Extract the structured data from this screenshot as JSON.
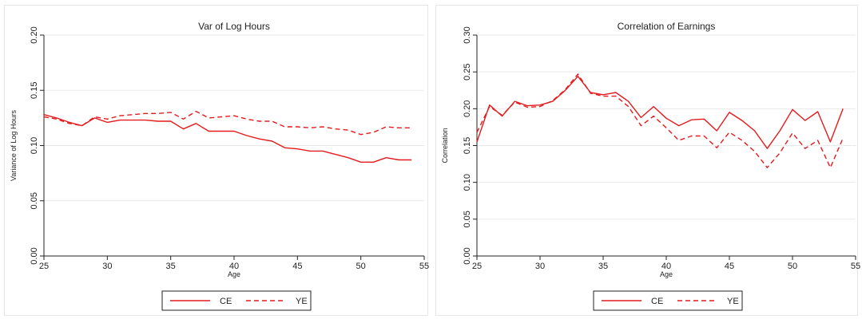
{
  "chart_data": [
    {
      "type": "line",
      "title": "Var of Log Hours",
      "xlabel": "Age",
      "ylabel": "Variance of Log Hours",
      "xlim": [
        25,
        55
      ],
      "ylim": [
        0.0,
        0.2
      ],
      "xticks": [
        "25",
        "30",
        "35",
        "40",
        "45",
        "50",
        "55"
      ],
      "yticks": [
        "0.00",
        "0.05",
        "0.10",
        "0.15",
        "0.20"
      ],
      "grid": true,
      "legend_position": "bottom",
      "series": [
        {
          "name": "CE",
          "color": "#e41a1c",
          "dash": "solid",
          "x": [
            25,
            26,
            27,
            28,
            29,
            30,
            31,
            32,
            33,
            34,
            35,
            36,
            37,
            38,
            39,
            40,
            41,
            42,
            43,
            44,
            45,
            46,
            47,
            48,
            49,
            50,
            51,
            52,
            53,
            54
          ],
          "y": [
            0.128,
            0.125,
            0.121,
            0.118,
            0.125,
            0.121,
            0.123,
            0.123,
            0.123,
            0.122,
            0.122,
            0.115,
            0.12,
            0.113,
            0.113,
            0.113,
            0.109,
            0.106,
            0.104,
            0.098,
            0.097,
            0.095,
            0.095,
            0.092,
            0.089,
            0.085,
            0.085,
            0.089,
            0.087,
            0.087
          ]
        },
        {
          "name": "YE",
          "color": "#e41a1c",
          "dash": "dashed",
          "x": [
            25,
            26,
            27,
            28,
            29,
            30,
            31,
            32,
            33,
            34,
            35,
            36,
            37,
            38,
            39,
            40,
            41,
            42,
            43,
            44,
            45,
            46,
            47,
            48,
            49,
            50,
            51,
            52,
            53,
            54
          ],
          "y": [
            0.126,
            0.124,
            0.12,
            0.118,
            0.126,
            0.124,
            0.127,
            0.128,
            0.129,
            0.129,
            0.13,
            0.124,
            0.131,
            0.125,
            0.126,
            0.127,
            0.124,
            0.122,
            0.122,
            0.117,
            0.117,
            0.116,
            0.117,
            0.115,
            0.114,
            0.11,
            0.112,
            0.117,
            0.116,
            0.116
          ]
        }
      ]
    },
    {
      "type": "line",
      "title": "Correlation of Earnings",
      "xlabel": "Age",
      "ylabel": "Correlation",
      "xlim": [
        25,
        55
      ],
      "ylim": [
        0.0,
        0.3
      ],
      "xticks": [
        "25",
        "30",
        "35",
        "40",
        "45",
        "50",
        "55"
      ],
      "yticks": [
        "0.00",
        "0.05",
        "0.10",
        "0.15",
        "0.20",
        "0.25",
        "0.30"
      ],
      "grid": true,
      "legend_position": "bottom",
      "series": [
        {
          "name": "CE",
          "color": "#e41a1c",
          "dash": "solid",
          "x": [
            25,
            26,
            27,
            28,
            29,
            30,
            31,
            32,
            33,
            34,
            35,
            36,
            37,
            38,
            39,
            40,
            41,
            42,
            43,
            44,
            45,
            46,
            47,
            48,
            49,
            50,
            51,
            52,
            53,
            54
          ],
          "y": [
            0.155,
            0.205,
            0.19,
            0.21,
            0.204,
            0.205,
            0.21,
            0.225,
            0.244,
            0.222,
            0.219,
            0.222,
            0.21,
            0.188,
            0.203,
            0.187,
            0.177,
            0.185,
            0.186,
            0.17,
            0.195,
            0.184,
            0.17,
            0.146,
            0.17,
            0.199,
            0.184,
            0.196,
            0.155,
            0.2
          ]
        },
        {
          "name": "YE",
          "color": "#e41a1c",
          "dash": "dashed",
          "x": [
            25,
            26,
            27,
            28,
            29,
            30,
            31,
            32,
            33,
            34,
            35,
            36,
            37,
            38,
            39,
            40,
            41,
            42,
            43,
            44,
            45,
            46,
            47,
            48,
            49,
            50,
            51,
            52,
            53,
            54
          ],
          "y": [
            0.168,
            0.203,
            0.191,
            0.209,
            0.202,
            0.203,
            0.211,
            0.226,
            0.247,
            0.221,
            0.217,
            0.217,
            0.203,
            0.177,
            0.19,
            0.174,
            0.157,
            0.163,
            0.163,
            0.147,
            0.168,
            0.157,
            0.142,
            0.12,
            0.14,
            0.167,
            0.146,
            0.157,
            0.12,
            0.16
          ]
        }
      ]
    }
  ]
}
